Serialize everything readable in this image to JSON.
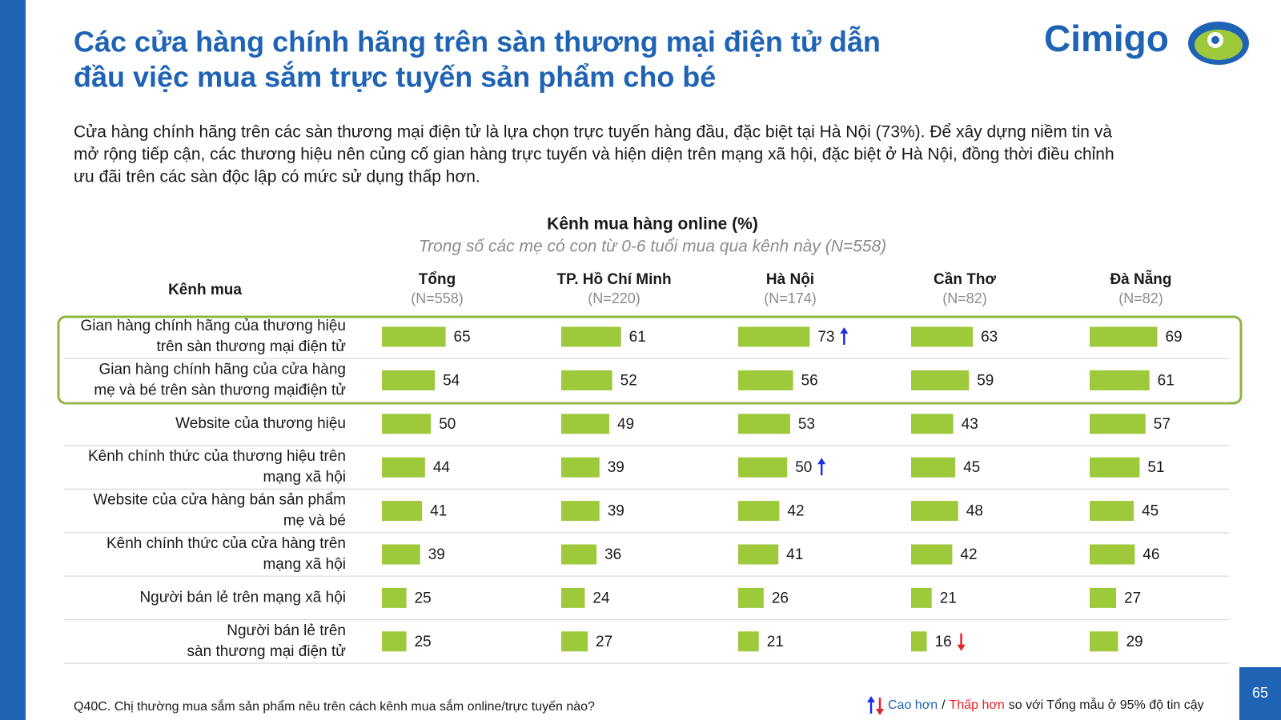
{
  "header": {
    "title": [
      "Các cửa hàng chính hãng trên sàn thương mại điện tử dẫn",
      "đầu việc mua sắm trực tuyến sản phẩm cho bé"
    ],
    "logo": "Cimigo",
    "paragraph": [
      "Cửa hàng chính hãng trên các sàn thương mại điện tử là lựa chọn trực tuyến hàng đầu, đặc biệt tại Hà Nội (73%). Để xây dựng niềm tin và",
      "mở rộng tiếp cận, các thương hiệu nên củng cố gian hàng trực tuyến và hiện diện trên mạng xã hội, đặc biệt ở Hà Nội, đồng thời điều chỉnh",
      "ưu đãi trên các sàn độc lập có mức sử dụng thấp hơn."
    ]
  },
  "table": {
    "title": "Kênh mua hàng online (%)",
    "subtitle": "Trong số các mẹ có con từ 0-6 tuổi mua qua kênh này (N=558)",
    "row_header": "Kênh mua",
    "bar_color": "#9dc93b",
    "columns": [
      {
        "name": "Tổng",
        "n": "(N=558)"
      },
      {
        "name": "TP. Hồ Chí Minh",
        "n": "(N=220)"
      },
      {
        "name": "Hà Nội",
        "n": "(N=174)"
      },
      {
        "name": "Cần Thơ",
        "n": "(N=82)"
      },
      {
        "name": "Đà Nẵng",
        "n": "(N=82)"
      }
    ],
    "rows": [
      {
        "label": [
          "Gian hàng chính hãng của thương hiệu",
          "trên sàn thương mại điện tử"
        ],
        "values": [
          65,
          61,
          73,
          63,
          69
        ],
        "arrows": [
          null,
          null,
          "up",
          null,
          null
        ]
      },
      {
        "label": [
          "Gian hàng chính hãng của cửa hàng",
          "mẹ và bé trên sàn thương mạiđiện tử"
        ],
        "values": [
          54,
          52,
          56,
          59,
          61
        ],
        "arrows": [
          null,
          null,
          null,
          null,
          null
        ]
      },
      {
        "label": [
          "Website của thương hiệu"
        ],
        "values": [
          50,
          49,
          53,
          43,
          57
        ],
        "arrows": [
          null,
          null,
          null,
          null,
          null
        ]
      },
      {
        "label": [
          "Kênh chính thức của thương hiệu trên",
          "mạng xã hội"
        ],
        "values": [
          44,
          39,
          50,
          45,
          51
        ],
        "arrows": [
          null,
          null,
          "up",
          null,
          null
        ]
      },
      {
        "label": [
          "Website của cửa hàng bán sản phẩm",
          "mẹ và bé"
        ],
        "values": [
          41,
          39,
          42,
          48,
          45
        ],
        "arrows": [
          null,
          null,
          null,
          null,
          null
        ]
      },
      {
        "label": [
          "Kênh chính thức của cửa hàng trên",
          "mạng xã hội"
        ],
        "values": [
          39,
          36,
          41,
          42,
          46
        ],
        "arrows": [
          null,
          null,
          null,
          null,
          null
        ]
      },
      {
        "label": [
          "Người bán lẻ trên mạng xã hội"
        ],
        "values": [
          25,
          24,
          26,
          21,
          27
        ],
        "arrows": [
          null,
          null,
          null,
          null,
          null
        ]
      },
      {
        "label": [
          "Người bán lẻ trên",
          "sàn thương mại điện tử"
        ],
        "values": [
          25,
          27,
          21,
          16,
          29
        ],
        "arrows": [
          null,
          null,
          null,
          "down",
          null
        ]
      }
    ]
  },
  "footer": {
    "question": "Q40C. Chị thường mua sắm sản phẩm nêu trên cách kênh mua sắm online/trực tuyến nào?",
    "legend": {
      "higher": "Cao hơn",
      "separator": "/",
      "lower": "Thấp hơn",
      "text": "so với Tổng mẫu ở 95% độ tin cậy"
    },
    "page_number": "65"
  }
}
